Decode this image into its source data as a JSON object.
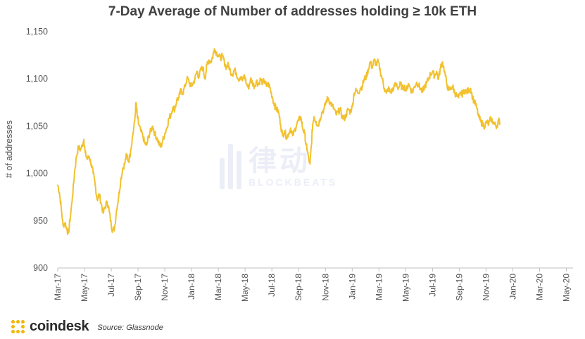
{
  "chart_data": {
    "type": "line",
    "title": "7-Day Average of Number of addresses holding ≥ 10k ETH",
    "xlabel": "",
    "ylabel": "# of addresses",
    "ylim": [
      900,
      1150
    ],
    "yticks": [
      900,
      950,
      1000,
      1050,
      1100,
      1150
    ],
    "ytick_labels": [
      "900",
      "950",
      "1,000",
      "1,050",
      "1,100",
      "1,150"
    ],
    "xlim": [
      0,
      38.5
    ],
    "xticks": [
      0,
      2,
      4,
      6,
      8,
      10,
      12,
      14,
      16,
      18,
      20,
      22,
      24,
      26,
      28,
      30,
      32,
      34,
      36,
      38
    ],
    "xtick_labels": [
      "Mar-17",
      "May-17",
      "Jul-17",
      "Sep-17",
      "Nov-17",
      "Jan-18",
      "Mar-18",
      "May-18",
      "Jul-18",
      "Sep-18",
      "Nov-18",
      "Jan-19",
      "Mar-19",
      "May-19",
      "Jul-19",
      "Sep-19",
      "Nov-19",
      "Jan-20",
      "Mar-20",
      "May-20"
    ],
    "x_unit": "months since Mar-17",
    "grid": false,
    "line_color": "#f2c12e",
    "series": [
      {
        "name": "Number of addresses holding ≥ 10k ETH (7-day average)",
        "points": [
          [
            0.0,
            988
          ],
          [
            0.12,
            980
          ],
          [
            0.25,
            965
          ],
          [
            0.4,
            945
          ],
          [
            0.55,
            948
          ],
          [
            0.7,
            940
          ],
          [
            0.8,
            937
          ],
          [
            0.95,
            955
          ],
          [
            1.1,
            975
          ],
          [
            1.25,
            1000
          ],
          [
            1.4,
            1018
          ],
          [
            1.55,
            1028
          ],
          [
            1.7,
            1025
          ],
          [
            1.85,
            1030
          ],
          [
            1.95,
            1036
          ],
          [
            2.05,
            1022
          ],
          [
            2.2,
            1015
          ],
          [
            2.35,
            1018
          ],
          [
            2.5,
            1010
          ],
          [
            2.65,
            1000
          ],
          [
            2.8,
            988
          ],
          [
            2.95,
            972
          ],
          [
            3.1,
            978
          ],
          [
            3.25,
            968
          ],
          [
            3.4,
            958
          ],
          [
            3.55,
            965
          ],
          [
            3.7,
            970
          ],
          [
            3.85,
            960
          ],
          [
            4.0,
            945
          ],
          [
            4.1,
            940
          ],
          [
            4.25,
            942
          ],
          [
            4.4,
            962
          ],
          [
            4.55,
            975
          ],
          [
            4.7,
            992
          ],
          [
            4.85,
            1005
          ],
          [
            5.0,
            1010
          ],
          [
            5.15,
            1020
          ],
          [
            5.3,
            1012
          ],
          [
            5.45,
            1025
          ],
          [
            5.6,
            1040
          ],
          [
            5.75,
            1055
          ],
          [
            5.85,
            1075
          ],
          [
            5.95,
            1060
          ],
          [
            6.05,
            1052
          ],
          [
            6.2,
            1045
          ],
          [
            6.35,
            1040
          ],
          [
            6.5,
            1032
          ],
          [
            6.65,
            1030
          ],
          [
            6.8,
            1040
          ],
          [
            6.95,
            1045
          ],
          [
            7.1,
            1050
          ],
          [
            7.25,
            1042
          ],
          [
            7.4,
            1038
          ],
          [
            7.55,
            1032
          ],
          [
            7.7,
            1028
          ],
          [
            7.85,
            1035
          ],
          [
            8.0,
            1042
          ],
          [
            8.15,
            1048
          ],
          [
            8.3,
            1058
          ],
          [
            8.45,
            1062
          ],
          [
            8.6,
            1070
          ],
          [
            8.75,
            1068
          ],
          [
            8.9,
            1078
          ],
          [
            9.05,
            1080
          ],
          [
            9.2,
            1088
          ],
          [
            9.35,
            1085
          ],
          [
            9.5,
            1092
          ],
          [
            9.65,
            1100
          ],
          [
            9.8,
            1098
          ],
          [
            9.95,
            1092
          ],
          [
            10.1,
            1095
          ],
          [
            10.25,
            1100
          ],
          [
            10.4,
            1108
          ],
          [
            10.55,
            1102
          ],
          [
            10.7,
            1110
          ],
          [
            10.85,
            1112
          ],
          [
            11.0,
            1100
          ],
          [
            11.15,
            1115
          ],
          [
            11.3,
            1120
          ],
          [
            11.45,
            1118
          ],
          [
            11.6,
            1125
          ],
          [
            11.7,
            1132
          ],
          [
            11.85,
            1128
          ],
          [
            12.0,
            1125
          ],
          [
            12.15,
            1122
          ],
          [
            12.3,
            1124
          ],
          [
            12.45,
            1118
          ],
          [
            12.6,
            1112
          ],
          [
            12.75,
            1115
          ],
          [
            12.9,
            1108
          ],
          [
            13.05,
            1105
          ],
          [
            13.2,
            1110
          ],
          [
            13.35,
            1106
          ],
          [
            13.5,
            1100
          ],
          [
            13.65,
            1102
          ],
          [
            13.8,
            1098
          ],
          [
            13.95,
            1104
          ],
          [
            14.1,
            1095
          ],
          [
            14.25,
            1090
          ],
          [
            14.4,
            1100
          ],
          [
            14.55,
            1096
          ],
          [
            14.7,
            1092
          ],
          [
            14.85,
            1098
          ],
          [
            15.0,
            1094
          ],
          [
            15.15,
            1100
          ],
          [
            15.3,
            1096
          ],
          [
            15.45,
            1098
          ],
          [
            15.6,
            1092
          ],
          [
            15.75,
            1095
          ],
          [
            15.9,
            1088
          ],
          [
            16.05,
            1080
          ],
          [
            16.2,
            1072
          ],
          [
            16.35,
            1068
          ],
          [
            16.5,
            1065
          ],
          [
            16.65,
            1052
          ],
          [
            16.8,
            1040
          ],
          [
            16.95,
            1045
          ],
          [
            17.1,
            1038
          ],
          [
            17.25,
            1042
          ],
          [
            17.4,
            1048
          ],
          [
            17.55,
            1040
          ],
          [
            17.7,
            1045
          ],
          [
            17.85,
            1052
          ],
          [
            18.0,
            1056
          ],
          [
            18.15,
            1060
          ],
          [
            18.3,
            1048
          ],
          [
            18.45,
            1042
          ],
          [
            18.55,
            1030
          ],
          [
            18.65,
            1025
          ],
          [
            18.75,
            1015
          ],
          [
            18.85,
            1010
          ],
          [
            18.95,
            1030
          ],
          [
            19.05,
            1052
          ],
          [
            19.15,
            1060
          ],
          [
            19.3,
            1055
          ],
          [
            19.45,
            1050
          ],
          [
            19.6,
            1058
          ],
          [
            19.75,
            1065
          ],
          [
            19.9,
            1068
          ],
          [
            20.05,
            1076
          ],
          [
            20.2,
            1080
          ],
          [
            20.35,
            1075
          ],
          [
            20.5,
            1072
          ],
          [
            20.65,
            1068
          ],
          [
            20.8,
            1062
          ],
          [
            20.95,
            1065
          ],
          [
            21.1,
            1068
          ],
          [
            21.25,
            1060
          ],
          [
            21.4,
            1058
          ],
          [
            21.55,
            1062
          ],
          [
            21.7,
            1068
          ],
          [
            21.85,
            1065
          ],
          [
            22.0,
            1070
          ],
          [
            22.15,
            1085
          ],
          [
            22.3,
            1088
          ],
          [
            22.45,
            1085
          ],
          [
            22.6,
            1090
          ],
          [
            22.75,
            1092
          ],
          [
            22.9,
            1100
          ],
          [
            23.05,
            1102
          ],
          [
            23.2,
            1110
          ],
          [
            23.35,
            1118
          ],
          [
            23.5,
            1112
          ],
          [
            23.65,
            1120
          ],
          [
            23.8,
            1115
          ],
          [
            23.95,
            1118
          ],
          [
            24.1,
            1108
          ],
          [
            24.25,
            1100
          ],
          [
            24.4,
            1090
          ],
          [
            24.55,
            1085
          ],
          [
            24.7,
            1090
          ],
          [
            24.85,
            1086
          ],
          [
            25.0,
            1088
          ],
          [
            25.15,
            1092
          ],
          [
            25.3,
            1095
          ],
          [
            25.45,
            1090
          ],
          [
            25.6,
            1095
          ],
          [
            25.75,
            1090
          ],
          [
            25.9,
            1092
          ],
          [
            26.05,
            1088
          ],
          [
            26.2,
            1095
          ],
          [
            26.35,
            1090
          ],
          [
            26.5,
            1086
          ],
          [
            26.65,
            1092
          ],
          [
            26.8,
            1096
          ],
          [
            26.95,
            1094
          ],
          [
            27.1,
            1090
          ],
          [
            27.25,
            1086
          ],
          [
            27.4,
            1092
          ],
          [
            27.55,
            1095
          ],
          [
            27.7,
            1100
          ],
          [
            27.85,
            1105
          ],
          [
            28.0,
            1108
          ],
          [
            28.15,
            1103
          ],
          [
            28.3,
            1108
          ],
          [
            28.45,
            1100
          ],
          [
            28.6,
            1112
          ],
          [
            28.75,
            1118
          ],
          [
            28.9,
            1108
          ],
          [
            29.05,
            1096
          ],
          [
            29.2,
            1088
          ],
          [
            29.35,
            1090
          ],
          [
            29.5,
            1092
          ],
          [
            29.65,
            1086
          ],
          [
            29.8,
            1082
          ],
          [
            29.95,
            1080
          ],
          [
            30.1,
            1085
          ],
          [
            30.25,
            1084
          ],
          [
            30.4,
            1088
          ],
          [
            30.55,
            1086
          ],
          [
            30.7,
            1088
          ],
          [
            30.85,
            1090
          ],
          [
            31.0,
            1080
          ],
          [
            31.15,
            1075
          ],
          [
            31.3,
            1070
          ],
          [
            31.45,
            1060
          ],
          [
            31.6,
            1055
          ],
          [
            31.75,
            1052
          ],
          [
            31.9,
            1050
          ],
          [
            32.05,
            1055
          ],
          [
            32.2,
            1052
          ],
          [
            32.35,
            1058
          ],
          [
            32.5,
            1055
          ],
          [
            32.65,
            1052
          ],
          [
            32.8,
            1050
          ],
          [
            32.95,
            1056
          ],
          [
            33.05,
            1054
          ]
        ]
      }
    ]
  },
  "footer": {
    "logo_text": "coindesk",
    "source": "Source: Glassnode"
  },
  "watermark": {
    "cn_text": "律动",
    "en_text": "BLOCKBEATS"
  }
}
